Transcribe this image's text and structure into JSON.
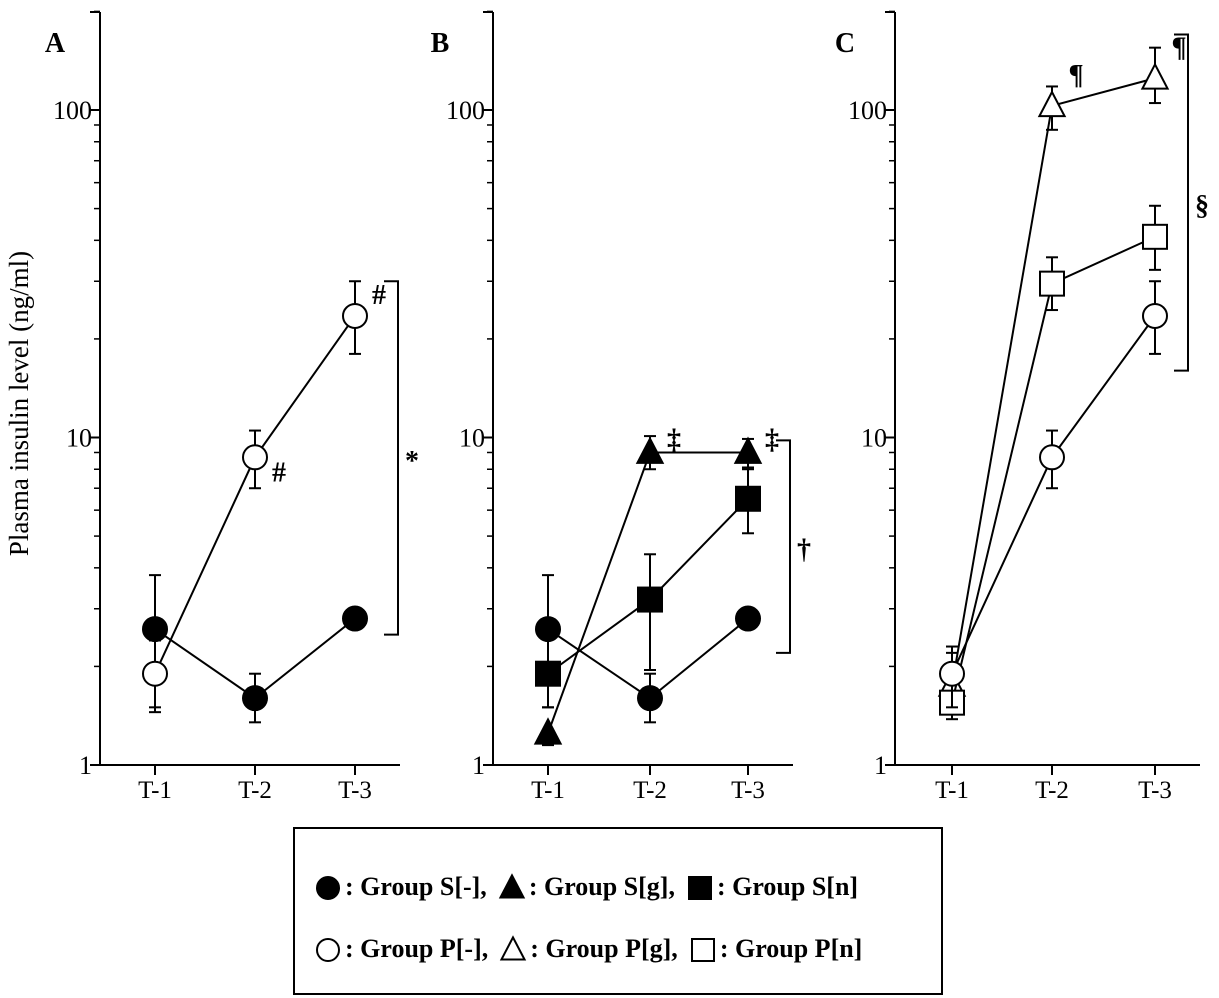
{
  "chart_data": [
    {
      "type": "line",
      "panel_label": "A",
      "ylabel": "Plasma insulin level (ng/ml)",
      "yscale": "log",
      "ylim": [
        1,
        200
      ],
      "yticks": [
        "1",
        "10",
        "100"
      ],
      "categories": [
        "T-1",
        "T-2",
        "T-3"
      ],
      "series": [
        {
          "name": "Group S[-]",
          "marker": "circle",
          "fill": "filled",
          "values": [
            2.6,
            1.6,
            2.8
          ],
          "err_up": [
            3.8,
            1.9,
            null
          ],
          "err_down": [
            1.5,
            1.35,
            null
          ]
        },
        {
          "name": "Group P[-]",
          "marker": "circle",
          "fill": "open",
          "values": [
            1.9,
            8.7,
            23.5
          ],
          "err_up": [
            2.4,
            10.5,
            30
          ],
          "err_down": [
            1.45,
            7.0,
            18
          ]
        }
      ],
      "annotations": [
        {
          "text": "#",
          "series": "Group P[-]",
          "at": "T-2"
        },
        {
          "text": "#",
          "series": "Group P[-]",
          "at": "T-3"
        }
      ],
      "brackets": [
        {
          "text": "*",
          "from_value": 2.5,
          "to_value": 30
        }
      ]
    },
    {
      "type": "line",
      "panel_label": "B",
      "yscale": "log",
      "ylim": [
        1,
        200
      ],
      "yticks": [
        "1",
        "10",
        "100"
      ],
      "categories": [
        "T-1",
        "T-2",
        "T-3"
      ],
      "series": [
        {
          "name": "Group S[-]",
          "marker": "circle",
          "fill": "filled",
          "values": [
            2.6,
            1.6,
            2.8
          ],
          "err_up": [
            3.8,
            1.9,
            null
          ],
          "err_down": [
            1.5,
            1.35,
            null
          ]
        },
        {
          "name": "Group S[g]",
          "marker": "triangle",
          "fill": "filled",
          "values": [
            1.25,
            9.0,
            9.0
          ],
          "err_up": [
            null,
            10.1,
            9.9
          ],
          "err_down": [
            1.15,
            8.0,
            8.1
          ]
        },
        {
          "name": "Group S[n]",
          "marker": "square",
          "fill": "filled",
          "values": [
            1.9,
            3.2,
            6.5
          ],
          "err_up": [
            null,
            4.4,
            8.0
          ],
          "err_down": [
            1.5,
            1.95,
            5.1
          ]
        }
      ],
      "annotations": [
        {
          "text": "‡",
          "series": "Group S[g]",
          "at": "T-2"
        },
        {
          "text": "‡",
          "series": "Group S[g]",
          "at": "T-3"
        }
      ],
      "brackets": [
        {
          "text": "†",
          "from_value": 2.2,
          "to_value": 9.8
        }
      ]
    },
    {
      "type": "line",
      "panel_label": "C",
      "yscale": "log",
      "ylim": [
        1,
        200
      ],
      "yticks": [
        "1",
        "10",
        "100"
      ],
      "categories": [
        "T-1",
        "T-2",
        "T-3"
      ],
      "series": [
        {
          "name": "Group P[g]",
          "marker": "triangle",
          "fill": "open",
          "values": [
            1.75,
            103,
            125
          ],
          "err_up": [
            2.2,
            118,
            155
          ],
          "err_down": [
            1.45,
            87,
            105
          ]
        },
        {
          "name": "Group P[n]",
          "marker": "square",
          "fill": "open",
          "values": [
            1.55,
            29.5,
            41
          ],
          "err_up": [
            1.85,
            35.5,
            51
          ],
          "err_down": [
            1.38,
            24.5,
            32.5
          ]
        },
        {
          "name": "Group P[-]",
          "marker": "circle",
          "fill": "open",
          "values": [
            1.9,
            8.7,
            23.5
          ],
          "err_up": [
            2.3,
            10.5,
            30
          ],
          "err_down": [
            1.5,
            7.0,
            18
          ]
        }
      ],
      "annotations": [
        {
          "text": "¶",
          "series": "Group P[g]",
          "at": "T-2"
        },
        {
          "text": "¶",
          "series": "Group P[g]",
          "at": "T-3"
        }
      ],
      "brackets": [
        {
          "text": "§",
          "from_value": 16,
          "to_value": 170
        }
      ]
    }
  ],
  "legend": {
    "row1": [
      {
        "marker": "circle",
        "fill": "filled",
        "label": ": Group S[-],"
      },
      {
        "marker": "triangle",
        "fill": "filled",
        "label": ": Group S[g],"
      },
      {
        "marker": "square",
        "fill": "filled",
        "label": ": Group S[n]"
      }
    ],
    "row2": [
      {
        "marker": "circle",
        "fill": "open",
        "label": ": Group P[-],"
      },
      {
        "marker": "triangle",
        "fill": "open",
        "label": ": Group P[g],"
      },
      {
        "marker": "square",
        "fill": "open",
        "label": ": Group P[n]"
      }
    ]
  },
  "colors": {
    "ink": "#000000",
    "background": "#ffffff"
  }
}
